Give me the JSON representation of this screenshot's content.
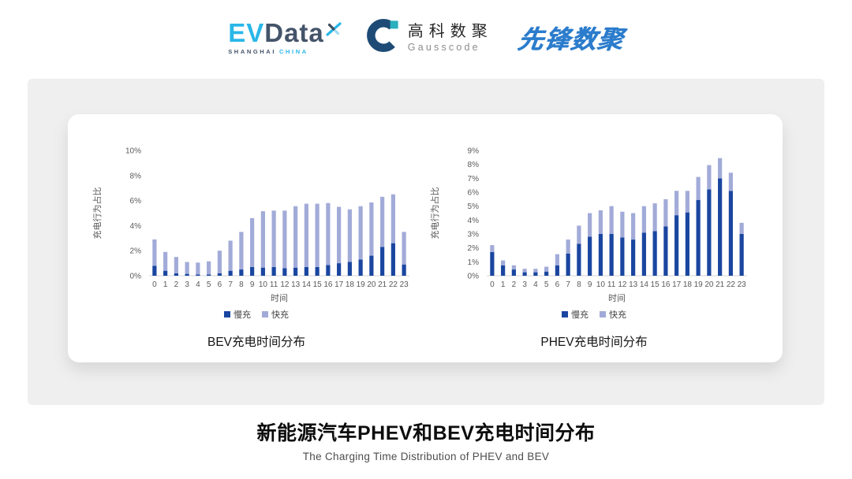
{
  "colors": {
    "slow_charge": "#1a46a0",
    "fast_charge": "#a2abd8",
    "panel_bg": "#efefef",
    "card_bg": "#ffffff",
    "axis_text": "#595959",
    "evdata_cyan": "#29b7e8",
    "evdata_slate": "#44546a",
    "gausscode_navy": "#1d4b76",
    "gausscode_teal": "#2aafbe",
    "pioneer_blue": "#2b7ccc"
  },
  "header": {
    "evdata_logo": {
      "ev": "EV",
      "data": "Data",
      "sub_left": "SHANGHAI",
      "sub_right": "CHINA"
    },
    "gausscode_logo": {
      "cn": "高科数聚",
      "en": "Gausscode"
    },
    "pioneer_logo": {
      "text": "先锋数聚"
    }
  },
  "chart_data": [
    {
      "type": "bar",
      "stacked": true,
      "title": "BEV充电时间分布",
      "xlabel": "时间",
      "ylabel": "充电行为占比",
      "ylim": [
        0,
        10
      ],
      "ytick_step": 2,
      "ytick_suffix": "%",
      "grid": false,
      "legend_position": "bottom",
      "categories": [
        "0",
        "1",
        "2",
        "3",
        "4",
        "5",
        "6",
        "7",
        "8",
        "9",
        "10",
        "11",
        "12",
        "13",
        "14",
        "15",
        "16",
        "17",
        "18",
        "19",
        "20",
        "21",
        "22",
        "23"
      ],
      "series": [
        {
          "name": "慢充",
          "color": "#1a46a0",
          "values": [
            0.8,
            0.4,
            0.2,
            0.15,
            0.1,
            0.1,
            0.2,
            0.4,
            0.5,
            0.7,
            0.65,
            0.7,
            0.6,
            0.65,
            0.7,
            0.7,
            0.85,
            1.0,
            1.1,
            1.3,
            1.6,
            2.3,
            2.6,
            0.9
          ]
        },
        {
          "name": "快充",
          "color": "#a2abd8",
          "values": [
            2.1,
            1.5,
            1.3,
            0.95,
            0.95,
            1.05,
            1.8,
            2.4,
            3.0,
            3.9,
            4.5,
            4.5,
            4.6,
            4.9,
            5.05,
            5.05,
            4.95,
            4.5,
            4.2,
            4.25,
            4.25,
            4.0,
            3.9,
            2.6
          ]
        }
      ]
    },
    {
      "type": "bar",
      "stacked": true,
      "title": "PHEV充电时间分布",
      "xlabel": "时间",
      "ylabel": "充电行为占比",
      "ylim": [
        0,
        9
      ],
      "ytick_step": 1,
      "ytick_suffix": "%",
      "grid": false,
      "legend_position": "bottom",
      "categories": [
        "0",
        "1",
        "2",
        "3",
        "4",
        "5",
        "6",
        "7",
        "8",
        "9",
        "10",
        "11",
        "12",
        "13",
        "14",
        "15",
        "16",
        "17",
        "18",
        "19",
        "20",
        "21",
        "22",
        "23"
      ],
      "series": [
        {
          "name": "慢充",
          "color": "#1a46a0",
          "values": [
            1.7,
            0.75,
            0.45,
            0.25,
            0.25,
            0.3,
            0.75,
            1.6,
            2.3,
            2.8,
            3.0,
            3.0,
            2.75,
            2.6,
            3.1,
            3.2,
            3.55,
            4.35,
            4.55,
            5.45,
            6.2,
            7.0,
            6.1,
            3.0
          ]
        },
        {
          "name": "快充",
          "color": "#a2abd8",
          "values": [
            0.5,
            0.35,
            0.3,
            0.25,
            0.25,
            0.35,
            0.8,
            1.0,
            1.3,
            1.7,
            1.7,
            2.0,
            1.85,
            1.9,
            1.9,
            2.0,
            1.95,
            1.75,
            1.55,
            1.65,
            1.75,
            1.45,
            1.3,
            0.8
          ]
        }
      ]
    }
  ],
  "footer": {
    "title": "新能源汽车PHEV和BEV充电时间分布",
    "subtitle": "The Charging Time Distribution of PHEV and BEV"
  }
}
